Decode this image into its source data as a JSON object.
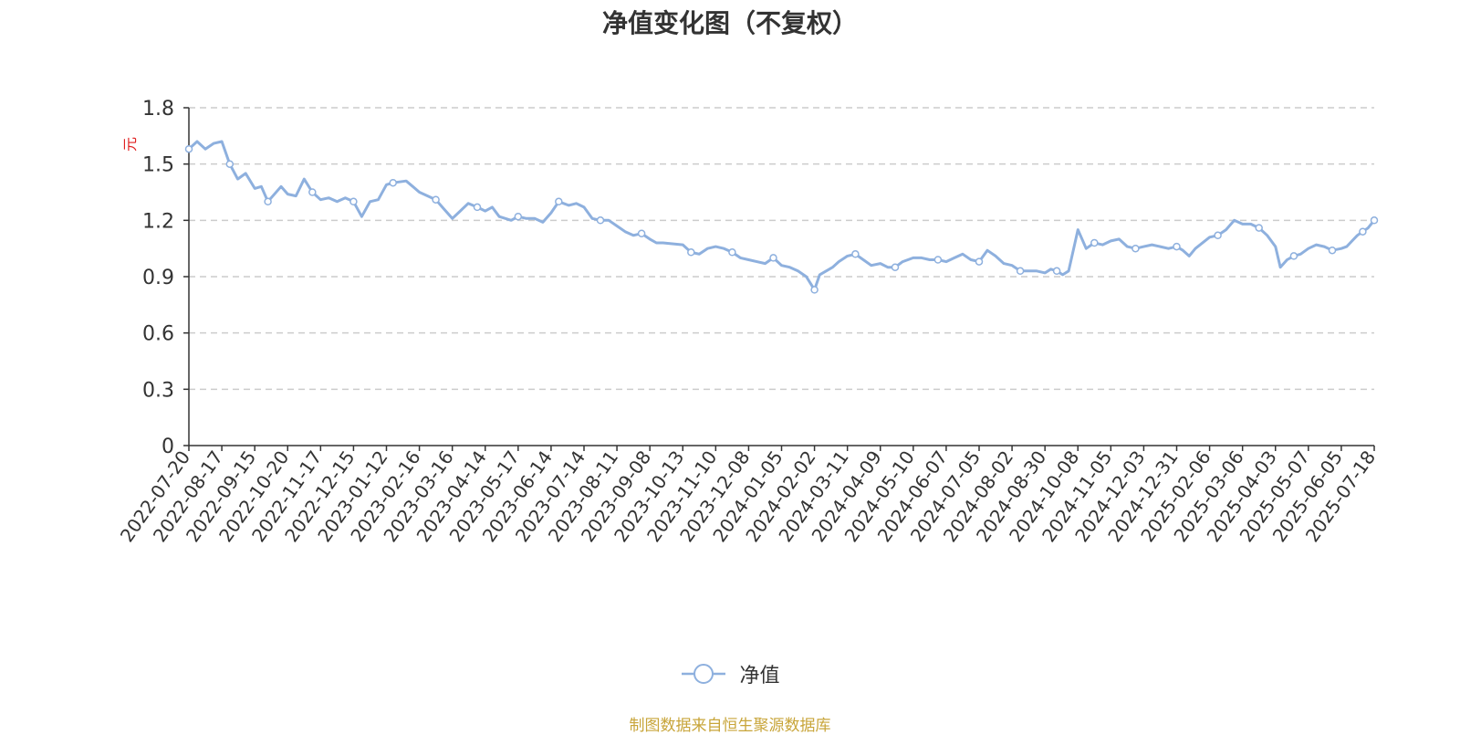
{
  "chart_data": {
    "type": "line",
    "title": "净值变化图（不复权）",
    "ylabel": "元",
    "ylim": [
      0,
      1.8
    ],
    "yticks": [
      0,
      0.3,
      0.6,
      0.9,
      1.2,
      1.5,
      1.8
    ],
    "grid": true,
    "legend_position": "bottom",
    "x_tick_labels": [
      "2022-07-20",
      "2022-08-17",
      "2022-09-15",
      "2022-10-20",
      "2022-11-17",
      "2022-12-15",
      "2023-01-12",
      "2023-02-16",
      "2023-03-16",
      "2023-04-14",
      "2023-05-17",
      "2023-06-14",
      "2023-07-14",
      "2023-08-11",
      "2023-09-08",
      "2023-10-13",
      "2023-11-10",
      "2023-12-08",
      "2024-01-05",
      "2024-02-02",
      "2024-03-11",
      "2024-04-09",
      "2024-05-10",
      "2024-06-07",
      "2024-07-05",
      "2024-08-02",
      "2024-08-30",
      "2024-10-08",
      "2024-11-05",
      "2024-12-03",
      "2024-12-31",
      "2025-02-06",
      "2025-03-06",
      "2025-04-03",
      "2025-05-07",
      "2025-06-05",
      "2025-07-18"
    ],
    "series": [
      {
        "name": "净值",
        "color": "#8eb0de",
        "x": [
          "2022-07-20",
          "2022-07-27",
          "2022-08-03",
          "2022-08-10",
          "2022-08-17",
          "2022-08-24",
          "2022-08-31",
          "2022-09-07",
          "2022-09-15",
          "2022-09-22",
          "2022-09-29",
          "2022-10-13",
          "2022-10-20",
          "2022-10-27",
          "2022-11-03",
          "2022-11-10",
          "2022-11-17",
          "2022-11-24",
          "2022-12-01",
          "2022-12-08",
          "2022-12-15",
          "2022-12-22",
          "2022-12-29",
          "2023-01-05",
          "2023-01-12",
          "2023-01-19",
          "2023-02-02",
          "2023-02-09",
          "2023-02-16",
          "2023-02-23",
          "2023-03-02",
          "2023-03-09",
          "2023-03-16",
          "2023-03-23",
          "2023-03-30",
          "2023-04-07",
          "2023-04-14",
          "2023-04-21",
          "2023-04-28",
          "2023-05-10",
          "2023-05-17",
          "2023-05-24",
          "2023-05-31",
          "2023-06-07",
          "2023-06-14",
          "2023-06-21",
          "2023-06-30",
          "2023-07-07",
          "2023-07-14",
          "2023-07-21",
          "2023-07-28",
          "2023-08-04",
          "2023-08-11",
          "2023-08-18",
          "2023-08-25",
          "2023-09-01",
          "2023-09-08",
          "2023-09-15",
          "2023-09-22",
          "2023-10-13",
          "2023-10-20",
          "2023-10-27",
          "2023-11-03",
          "2023-11-10",
          "2023-11-17",
          "2023-11-24",
          "2023-12-01",
          "2023-12-08",
          "2023-12-15",
          "2023-12-22",
          "2023-12-29",
          "2024-01-05",
          "2024-01-12",
          "2024-01-19",
          "2024-01-26",
          "2024-02-02",
          "2024-02-08",
          "2024-02-23",
          "2024-03-01",
          "2024-03-11",
          "2024-03-18",
          "2024-03-25",
          "2024-04-01",
          "2024-04-09",
          "2024-04-16",
          "2024-04-23",
          "2024-04-30",
          "2024-05-10",
          "2024-05-17",
          "2024-05-24",
          "2024-05-31",
          "2024-06-07",
          "2024-06-14",
          "2024-06-21",
          "2024-06-28",
          "2024-07-05",
          "2024-07-12",
          "2024-07-19",
          "2024-07-26",
          "2024-08-02",
          "2024-08-09",
          "2024-08-16",
          "2024-08-23",
          "2024-08-30",
          "2024-09-06",
          "2024-09-13",
          "2024-09-20",
          "2024-09-27",
          "2024-10-08",
          "2024-10-15",
          "2024-10-22",
          "2024-10-29",
          "2024-11-05",
          "2024-11-12",
          "2024-11-19",
          "2024-11-26",
          "2024-12-03",
          "2024-12-10",
          "2024-12-17",
          "2024-12-24",
          "2024-12-31",
          "2025-01-07",
          "2025-01-14",
          "2025-01-21",
          "2025-02-06",
          "2025-02-13",
          "2025-02-20",
          "2025-02-27",
          "2025-03-06",
          "2025-03-13",
          "2025-03-20",
          "2025-03-27",
          "2025-04-03",
          "2025-04-08",
          "2025-04-15",
          "2025-04-22",
          "2025-04-29",
          "2025-05-07",
          "2025-05-14",
          "2025-05-21",
          "2025-05-28",
          "2025-06-05",
          "2025-06-12",
          "2025-06-19",
          "2025-06-26",
          "2025-07-03",
          "2025-07-10",
          "2025-07-18"
        ],
        "values": [
          1.58,
          1.62,
          1.58,
          1.61,
          1.62,
          1.5,
          1.42,
          1.45,
          1.37,
          1.38,
          1.3,
          1.38,
          1.34,
          1.33,
          1.42,
          1.35,
          1.31,
          1.32,
          1.3,
          1.32,
          1.3,
          1.22,
          1.3,
          1.31,
          1.39,
          1.4,
          1.41,
          1.38,
          1.35,
          1.33,
          1.31,
          1.26,
          1.21,
          1.25,
          1.29,
          1.27,
          1.25,
          1.27,
          1.22,
          1.2,
          1.22,
          1.21,
          1.21,
          1.19,
          1.24,
          1.3,
          1.28,
          1.29,
          1.27,
          1.21,
          1.2,
          1.2,
          1.17,
          1.14,
          1.12,
          1.13,
          1.1,
          1.08,
          1.08,
          1.07,
          1.03,
          1.02,
          1.05,
          1.06,
          1.05,
          1.03,
          1.0,
          0.99,
          0.98,
          0.97,
          1.0,
          0.96,
          0.95,
          0.93,
          0.9,
          0.83,
          0.91,
          0.95,
          0.98,
          1.01,
          1.02,
          0.99,
          0.96,
          0.97,
          0.95,
          0.95,
          0.98,
          1.0,
          1.0,
          0.99,
          0.99,
          0.98,
          1.0,
          1.02,
          0.99,
          0.98,
          1.04,
          1.01,
          0.97,
          0.96,
          0.93,
          0.93,
          0.93,
          0.92,
          0.94,
          0.93,
          0.91,
          0.93,
          1.15,
          1.05,
          1.08,
          1.07,
          1.09,
          1.1,
          1.06,
          1.05,
          1.06,
          1.07,
          1.06,
          1.05,
          1.06,
          1.04,
          1.01,
          1.05,
          1.11,
          1.12,
          1.15,
          1.2,
          1.18,
          1.18,
          1.16,
          1.12,
          1.06,
          0.95,
          0.99,
          1.01,
          1.02,
          1.05,
          1.07,
          1.06,
          1.04,
          1.05,
          1.06,
          1.09,
          1.12,
          1.14,
          1.16,
          1.2
        ]
      }
    ]
  },
  "legend": {
    "label": "净值"
  },
  "footer": {
    "source": "制图数据来自恒生聚源数据库"
  },
  "colors": {
    "line": "#8eb0de",
    "axis": "#333333",
    "grid": "#cccccc",
    "ylabel": "#e02020",
    "source": "#c8a53a"
  }
}
